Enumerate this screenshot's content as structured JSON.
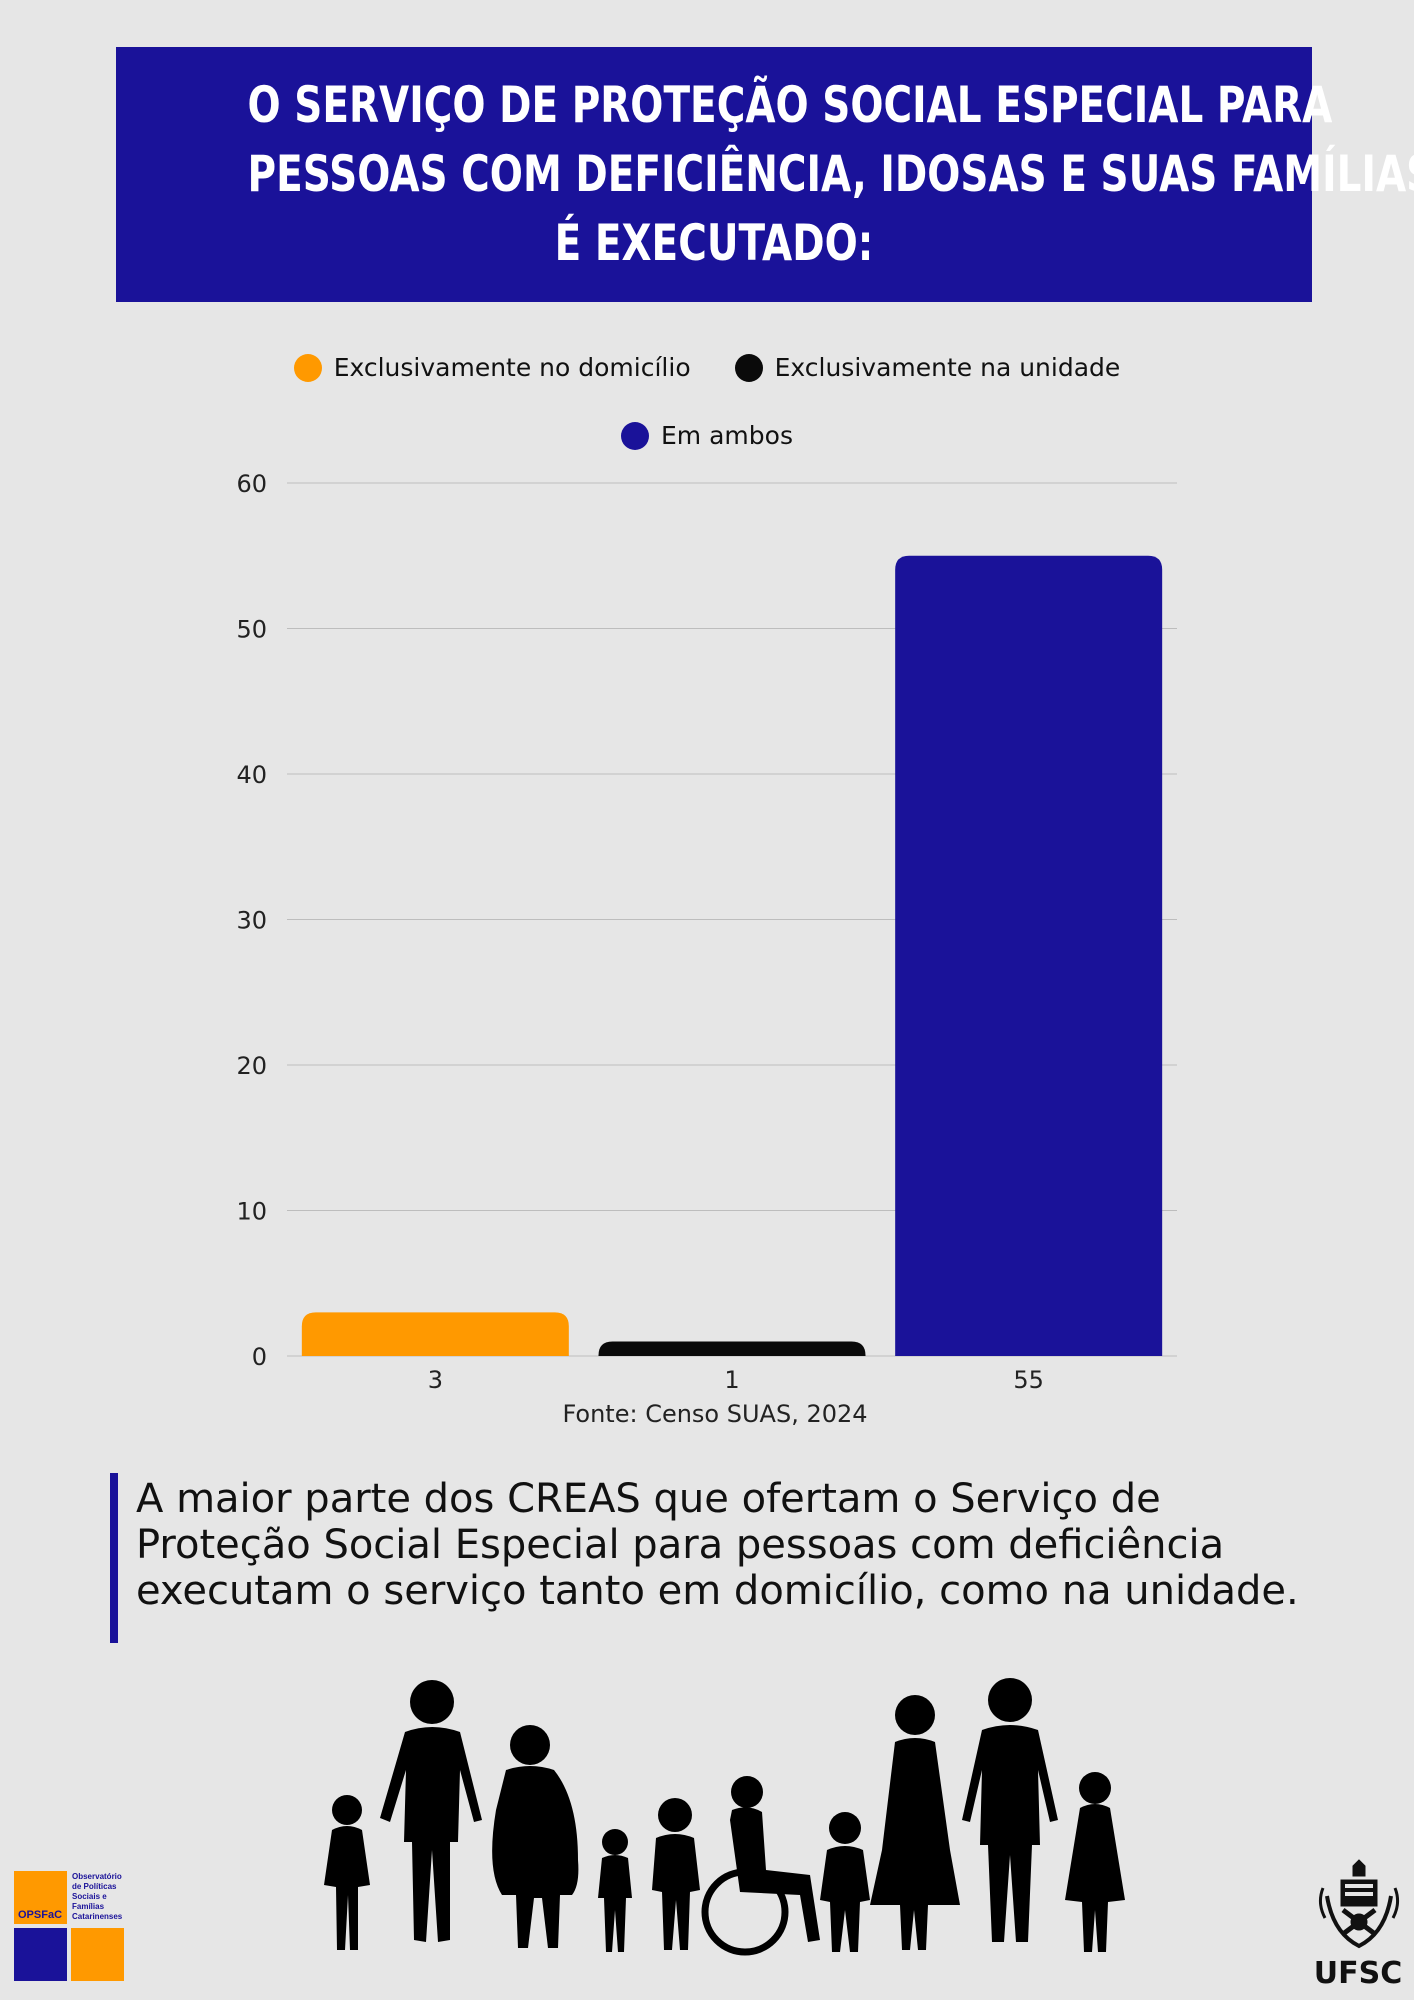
{
  "title_lines": [
    "O SERVIÇO DE PROTEÇÃO SOCIAL ESPECIAL PARA",
    "PESSOAS COM DEFICIÊNCIA, IDOSAS E SUAS FAMÍLIAS",
    "É EXECUTADO:"
  ],
  "colors": {
    "title_bg": "#1a1299",
    "orange": "#ff9900",
    "black": "#0a0a0a",
    "blue": "#1a1299"
  },
  "chart_data": {
    "type": "bar",
    "categories": [
      "3",
      "1",
      "55"
    ],
    "series": [
      {
        "name": "Exclusivamente no domicílio",
        "values": [
          3,
          null,
          null
        ],
        "color": "#ff9900"
      },
      {
        "name": "Exclusivamente na unidade",
        "values": [
          null,
          1,
          null
        ],
        "color": "#0a0a0a"
      },
      {
        "name": "Em ambos",
        "values": [
          null,
          null,
          55
        ],
        "color": "#1a1299"
      }
    ],
    "values": [
      3,
      1,
      55
    ],
    "ylim": [
      0,
      60
    ],
    "yticks": [
      0,
      10,
      20,
      30,
      40,
      50,
      60
    ],
    "grid": true,
    "legend_position": "top",
    "xlabel": "",
    "ylabel": ""
  },
  "source": "Fonte: Censo SUAS, 2024",
  "note": "A maior parte dos CREAS que ofertam o Serviço de Proteção Social Especial para pessoas com deficiência executam o serviço tanto em domicílio, como na unidade.",
  "logo": {
    "name": "OPSFaC",
    "text_lines": [
      "Observatório",
      "de Políticas",
      "Sociais e",
      "Famílias",
      "Catarinenses"
    ]
  },
  "university": "UFSC"
}
